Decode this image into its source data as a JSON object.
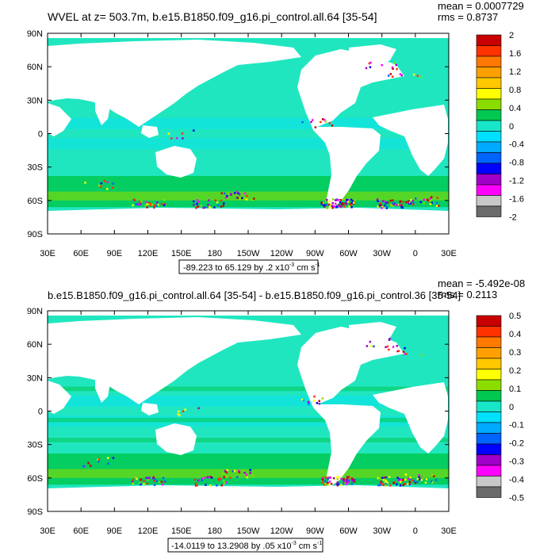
{
  "colors": {
    "ocean_base": "#20e6c0",
    "land": "#ffffff",
    "palette": [
      "#6a6a6a",
      "#c8c8c8",
      "#ff00ff",
      "#a000c8",
      "#0000ff",
      "#0064ff",
      "#00aaff",
      "#00e0ff",
      "#18e6c8",
      "#00c850",
      "#8cdc00",
      "#ffff00",
      "#ffc800",
      "#ffa000",
      "#ff7800",
      "#ff3200",
      "#c80000"
    ]
  },
  "chart_data": [
    {
      "type": "heatmap",
      "title": "WVEL at z= 503.7m, b.e15.B1850.f09_g16.pi_control.all.64 [35-54]",
      "stats": {
        "mean": "mean = 0.0007729",
        "rms": "rms = 0.8737"
      },
      "x_ticks": [
        "30E",
        "60E",
        "90E",
        "120E",
        "150E",
        "180",
        "150W",
        "120W",
        "90W",
        "60W",
        "30W",
        "0",
        "30E"
      ],
      "y_ticks": [
        "90N",
        "60N",
        "30N",
        "0",
        "30S",
        "60S",
        "90S"
      ],
      "xlim": [
        30,
        390
      ],
      "ylim": [
        -90,
        90
      ],
      "colorbar": [
        "2",
        "1.6",
        "1.2",
        "0.8",
        "0.4",
        "0",
        "-0.4",
        "-0.8",
        "-1.2",
        "-1.6",
        "-2"
      ],
      "range_label": "-89.223 to 65.129 by .2 x10",
      "range_exp": "-3",
      "range_unit": " cm s",
      "range_unit_exp": "-1"
    },
    {
      "type": "heatmap",
      "title": "b.e15.B1850.f09_g16.pi_control.all.64 [35-54] - b.e15.B1850.f09_g16.pi_control.36 [35-54]",
      "stats": {
        "mean": "mean = -5.492e-08",
        "rms": "rms = 0.2113"
      },
      "x_ticks": [
        "30E",
        "60E",
        "90E",
        "120E",
        "150E",
        "180",
        "150W",
        "120W",
        "90W",
        "60W",
        "30W",
        "0",
        "30E"
      ],
      "y_ticks": [
        "90N",
        "60N",
        "30N",
        "0",
        "30S",
        "60S",
        "90S"
      ],
      "xlim": [
        30,
        390
      ],
      "ylim": [
        -90,
        90
      ],
      "colorbar": [
        "0.5",
        "0.4",
        "0.3",
        "0.2",
        "0.1",
        "0",
        "-0.1",
        "-0.2",
        "-0.3",
        "-0.4",
        "-0.5"
      ],
      "range_label": "-14.0119 to 13.2908 by .05 x10",
      "range_exp": "-3",
      "range_unit": " cm s",
      "range_unit_exp": "-1"
    }
  ]
}
